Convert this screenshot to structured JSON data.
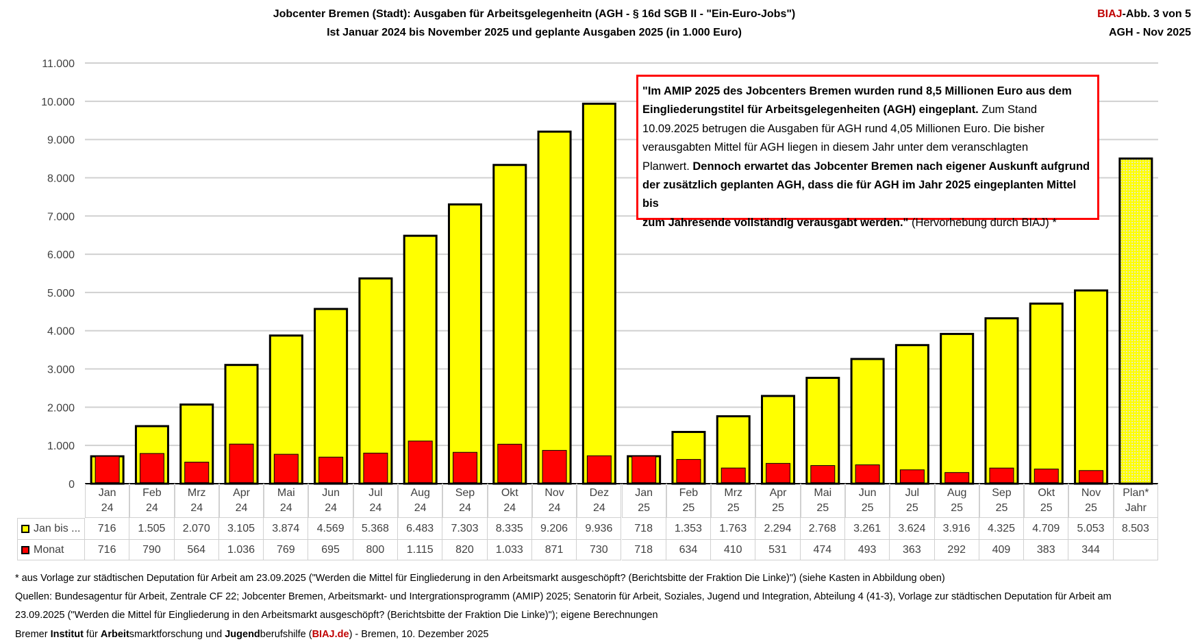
{
  "header": {
    "title_line1": "Jobcenter Bremen (Stadt): Ausgaben für Arbeitsgelegenheitn (AGH - § 16d SGB II - \"Ein-Euro-Jobs\")",
    "title_line2": "Ist Januar  2024 bis November 2025 und geplante Ausgaben 2025 (in 1.000 Euro)",
    "badge_brand": "BIAJ",
    "badge_rest": "-Abb. 3 von 5",
    "badge_line2": "AGH - Nov 2025"
  },
  "colors": {
    "cumulative": "#ffff00",
    "monthly": "#ff0000",
    "plan": "#ffff00",
    "box_border": "#ff0000",
    "brand": "#c00000"
  },
  "annotation": {
    "l1": "\"Im AMIP 2025 des Jobcenters Bremen wurden rund 8,5 Millionen Euro aus dem",
    "l2b": "Eingliederungstitel für Arbeitsgelegenheiten (AGH) eingeplant.",
    "l2n": " Zum Stand",
    "l3": "10.09.2025 betrugen die Ausgaben für AGH rund 4,05 Millionen Euro. Die bisher",
    "l4": "verausgabten Mittel  für AGH liegen in diesem Jahr unter dem veranschlagten",
    "l5n": "Planwert. ",
    "l5b": "Dennoch erwartet das Jobcenter Bremen nach eigener Auskunft aufgrund",
    "l6": "der zusätzlich geplanten AGH, dass die für AGH im Jahr 2025 eingeplanten Mittel bis",
    "l7b": "zum Jahresende vollständig verausgabt werden.\"",
    "l7n": " (Hervorhebung durch BIAJ) *"
  },
  "chart_data": {
    "type": "bar",
    "ylim": [
      0,
      11000
    ],
    "yticks": [
      "0",
      "1.000",
      "2.000",
      "3.000",
      "4.000",
      "5.000",
      "6.000",
      "7.000",
      "8.000",
      "9.000",
      "10.000",
      "11.000"
    ],
    "grid": true,
    "categories": [
      [
        "Jan",
        "24"
      ],
      [
        "Feb",
        "24"
      ],
      [
        "Mrz",
        "24"
      ],
      [
        "Apr",
        "24"
      ],
      [
        "Mai",
        "24"
      ],
      [
        "Jun",
        "24"
      ],
      [
        "Jul",
        "24"
      ],
      [
        "Aug",
        "24"
      ],
      [
        "Sep",
        "24"
      ],
      [
        "Okt",
        "24"
      ],
      [
        "Nov",
        "24"
      ],
      [
        "Dez",
        "24"
      ],
      [
        "Jan",
        "25"
      ],
      [
        "Feb",
        "25"
      ],
      [
        "Mrz",
        "25"
      ],
      [
        "Apr",
        "25"
      ],
      [
        "Mai",
        "25"
      ],
      [
        "Jun",
        "25"
      ],
      [
        "Jul",
        "25"
      ],
      [
        "Aug",
        "25"
      ],
      [
        "Sep",
        "25"
      ],
      [
        "Okt",
        "25"
      ],
      [
        "Nov",
        "25"
      ],
      [
        "Plan*",
        "Jahr"
      ]
    ],
    "series": [
      {
        "name": "Jan bis ...",
        "values": [
          716,
          1505,
          2070,
          3105,
          3874,
          4569,
          5368,
          6483,
          7303,
          8335,
          9206,
          9936,
          718,
          1353,
          1763,
          2294,
          2768,
          3261,
          3624,
          3916,
          4325,
          4709,
          5053,
          8503
        ],
        "labels": [
          "716",
          "1.505",
          "2.070",
          "3.105",
          "3.874",
          "4.569",
          "5.368",
          "6.483",
          "7.303",
          "8.335",
          "9.206",
          "9.936",
          "718",
          "1.353",
          "1.763",
          "2.294",
          "2.768",
          "3.261",
          "3.624",
          "3.916",
          "4.325",
          "4.709",
          "5.053",
          "8.503"
        ]
      },
      {
        "name": "Monat",
        "values": [
          716,
          790,
          564,
          1036,
          769,
          695,
          800,
          1115,
          820,
          1033,
          871,
          730,
          718,
          634,
          410,
          531,
          474,
          493,
          363,
          292,
          409,
          383,
          344,
          null
        ],
        "labels": [
          "716",
          "790",
          "564",
          "1.036",
          "769",
          "695",
          "800",
          "1.115",
          "820",
          "1.033",
          "871",
          "730",
          "718",
          "634",
          "410",
          "531",
          "474",
          "493",
          "363",
          "292",
          "409",
          "383",
          "344",
          ""
        ]
      }
    ],
    "legend": "data-table"
  },
  "footnotes": {
    "f1": "* aus Vorlage zur städtischen Deputation für Arbeit am 23.09.2025 (\"Werden die Mittel für Eingliederung in den Arbeitsmarkt ausgeschöpft? (Berichtsbitte der Fraktion Die Linke)\") (siehe Kasten in Abbildung oben)",
    "f2": "Quellen: Bundesagentur für Arbeit, Zentrale CF 22; Jobcenter Bremen, Arbeitsmarkt- und Intergrationsprogramm (AMIP) 2025; Senatorin für Arbeit, Soziales, Jugend und Integration, Abteilung 4 (41-3), Vorlage zur städtischen Deputation für Arbeit am",
    "f3": "23.09.2025 (\"Werden die Mittel für Eingliederung in den Arbeitsmarkt ausgeschöpft? (Berichtsbitte der Fraktion Die Linke)\"); eigene Berechnungen",
    "f4": [
      "Bremer ",
      "Institut",
      " für ",
      "Arbeit",
      "smarktforschung und ",
      "Jugend",
      "berufshilfe (",
      "BIAJ.de",
      ") - Bremen, 10. Dezember 2025"
    ]
  }
}
